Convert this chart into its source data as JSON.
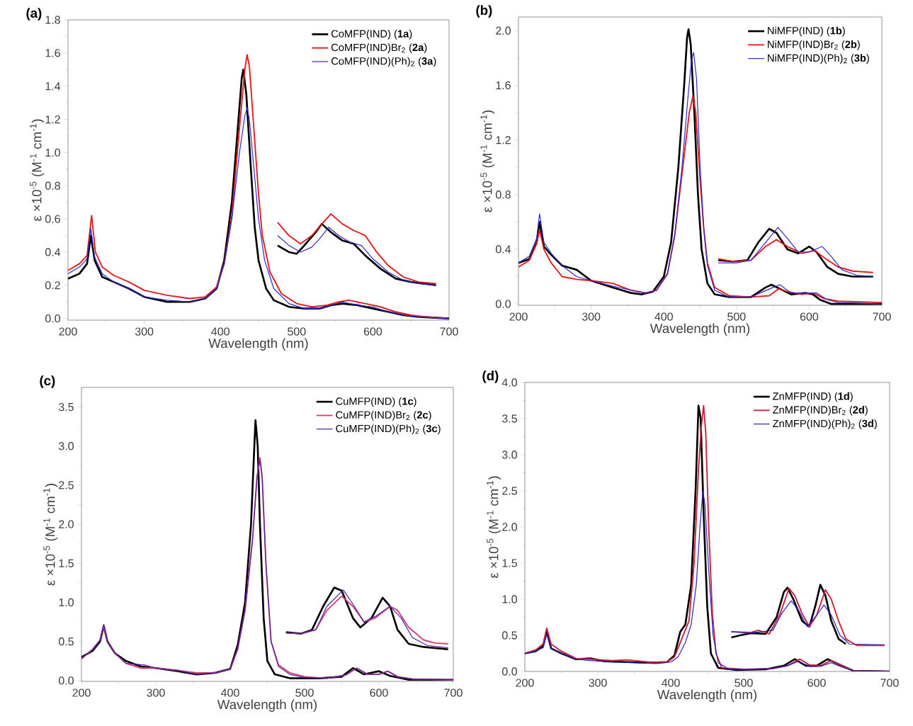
{
  "chart_data": [
    {
      "type": "line",
      "title": "(a)",
      "xlabel": "Wavelength (nm)",
      "ylabel": "ε ×10$^{-5}$ (M$^{-1}$ cm$^{-1}$)",
      "xlim": [
        200,
        700
      ],
      "ylim": [
        -0.01,
        1.8
      ],
      "xticks": [
        200,
        300,
        400,
        500,
        600,
        700
      ],
      "yticks": [
        {
          "value": 0,
          "label": "0.0"
        },
        0.2,
        0.4,
        0.6,
        0.8,
        {
          "value": 1,
          "label": "1.0"
        },
        1.2,
        1.4,
        1.6,
        1.8
      ],
      "legend": "top right",
      "grid": false,
      "marker": "none",
      "series": [
        {
          "name": "CoMFP(IND) (**1a**)",
          "color": "#000000",
          "x": [
            200,
            215,
            225,
            230,
            235,
            245,
            260,
            280,
            300,
            330,
            360,
            380,
            395,
            405,
            415,
            422,
            428,
            430,
            434,
            440,
            445,
            450,
            460,
            470,
            490,
            510,
            530,
            545,
            560,
            580,
            600,
            620,
            640,
            660,
            700
          ],
          "values": [
            0.24,
            0.27,
            0.33,
            0.5,
            0.35,
            0.25,
            0.22,
            0.18,
            0.13,
            0.1,
            0.1,
            0.12,
            0.18,
            0.35,
            0.7,
            1.1,
            1.45,
            1.5,
            1.35,
            0.9,
            0.55,
            0.35,
            0.18,
            0.11,
            0.07,
            0.06,
            0.06,
            0.08,
            0.09,
            0.08,
            0.06,
            0.04,
            0.02,
            0.01,
            0.0
          ]
        },
        {
          "name": "CoMFP(IND)Br$_{2}$ (**2a**)",
          "color": "#e31a1c",
          "x": [
            200,
            215,
            225,
            231,
            236,
            245,
            260,
            280,
            300,
            330,
            360,
            380,
            395,
            405,
            415,
            425,
            432,
            435,
            438,
            443,
            450,
            455,
            465,
            480,
            500,
            520,
            540,
            555,
            568,
            590,
            610,
            630,
            650,
            670,
            700
          ],
          "values": [
            0.29,
            0.33,
            0.38,
            0.62,
            0.4,
            0.31,
            0.26,
            0.22,
            0.17,
            0.14,
            0.12,
            0.13,
            0.19,
            0.33,
            0.62,
            1.15,
            1.5,
            1.59,
            1.52,
            1.2,
            0.75,
            0.5,
            0.28,
            0.15,
            0.09,
            0.07,
            0.08,
            0.1,
            0.11,
            0.09,
            0.07,
            0.04,
            0.02,
            0.01,
            0.0
          ]
        },
        {
          "name": "CoMFP(IND)(Ph)$_{2}$ (**3a**)",
          "color": "#2a2ad6",
          "x": [
            200,
            215,
            225,
            230,
            235,
            245,
            260,
            280,
            300,
            330,
            360,
            380,
            395,
            405,
            415,
            425,
            432,
            435,
            438,
            443,
            450,
            458,
            470,
            490,
            510,
            530,
            545,
            560,
            580,
            600,
            620,
            640,
            660,
            700
          ],
          "values": [
            0.27,
            0.31,
            0.36,
            0.54,
            0.37,
            0.27,
            0.22,
            0.18,
            0.13,
            0.11,
            0.1,
            0.12,
            0.18,
            0.33,
            0.6,
            1.0,
            1.22,
            1.27,
            1.2,
            0.95,
            0.6,
            0.35,
            0.18,
            0.09,
            0.06,
            0.06,
            0.08,
            0.1,
            0.08,
            0.07,
            0.04,
            0.02,
            0.01,
            0.0
          ]
        },
        {
          "color": "#000000",
          "x": [
            475,
            490,
            500,
            510,
            525,
            533,
            545,
            560,
            575,
            590,
            610,
            630,
            650,
            683
          ],
          "values": [
            0.44,
            0.4,
            0.39,
            0.44,
            0.52,
            0.57,
            0.52,
            0.47,
            0.45,
            0.38,
            0.3,
            0.24,
            0.22,
            0.2
          ]
        },
        {
          "color": "#e31a1c",
          "x": [
            475,
            490,
            505,
            520,
            535,
            545,
            560,
            575,
            590,
            605,
            620,
            640,
            660,
            683
          ],
          "values": [
            0.58,
            0.5,
            0.45,
            0.5,
            0.58,
            0.63,
            0.57,
            0.53,
            0.5,
            0.4,
            0.32,
            0.25,
            0.22,
            0.21
          ]
        },
        {
          "color": "#2a2ad6",
          "x": [
            475,
            490,
            505,
            520,
            530,
            542,
            555,
            570,
            585,
            600,
            620,
            640,
            660,
            683
          ],
          "values": [
            0.5,
            0.44,
            0.4,
            0.43,
            0.48,
            0.55,
            0.5,
            0.46,
            0.44,
            0.36,
            0.28,
            0.23,
            0.21,
            0.2
          ]
        }
      ]
    },
    {
      "type": "line",
      "title": "(b)",
      "xlabel": "Wavelength (nm)",
      "ylabel": "ε ×10$^{-5}$ (M$^{-1}$ cm$^{-1}$)",
      "xlim": [
        200,
        700
      ],
      "ylim": [
        -0.01,
        2.1
      ],
      "xticks": [
        200,
        300,
        400,
        500,
        600,
        700
      ],
      "yticks": [
        {
          "value": 0,
          "label": "0.0"
        },
        0.4,
        0.8,
        1.2,
        1.6,
        {
          "value": 2,
          "label": "2.0"
        }
      ],
      "legend": "top right",
      "grid": false,
      "marker": "none",
      "series": [
        {
          "name": "NiMFP(IND) (**1b**)",
          "color": "#000000",
          "x": [
            200,
            215,
            225,
            229,
            235,
            245,
            260,
            280,
            300,
            330,
            355,
            370,
            385,
            400,
            410,
            420,
            428,
            432,
            434,
            437,
            442,
            447,
            452,
            460,
            470,
            490,
            520,
            540,
            548,
            560,
            575,
            595,
            605,
            615,
            630,
            700
          ],
          "values": [
            0.3,
            0.33,
            0.45,
            0.6,
            0.42,
            0.36,
            0.28,
            0.25,
            0.17,
            0.12,
            0.08,
            0.07,
            0.09,
            0.2,
            0.45,
            1.0,
            1.6,
            1.95,
            2.01,
            1.9,
            1.4,
            0.8,
            0.4,
            0.15,
            0.07,
            0.05,
            0.05,
            0.12,
            0.14,
            0.11,
            0.07,
            0.08,
            0.07,
            0.03,
            0.0,
            0.0
          ]
        },
        {
          "name": "NiMFP(IND)Br$_{2}$ (**2b**)",
          "color": "#e31a1c",
          "x": [
            200,
            215,
            225,
            229,
            235,
            245,
            260,
            280,
            300,
            330,
            355,
            375,
            390,
            405,
            415,
            425,
            435,
            440,
            444,
            450,
            455,
            460,
            470,
            490,
            520,
            545,
            558,
            570,
            590,
            605,
            620,
            640,
            700
          ],
          "values": [
            0.27,
            0.32,
            0.44,
            0.54,
            0.4,
            0.3,
            0.2,
            0.18,
            0.17,
            0.15,
            0.1,
            0.08,
            0.1,
            0.22,
            0.5,
            0.95,
            1.4,
            1.52,
            1.4,
            0.9,
            0.55,
            0.3,
            0.12,
            0.06,
            0.05,
            0.06,
            0.11,
            0.09,
            0.07,
            0.08,
            0.04,
            0.02,
            0.01
          ]
        },
        {
          "name": "NiMFP(IND)(Ph)$_{2}$ (**3b**)",
          "color": "#2a2ad6",
          "x": [
            200,
            215,
            225,
            229,
            235,
            245,
            260,
            280,
            300,
            330,
            355,
            375,
            390,
            405,
            415,
            425,
            433,
            438,
            441,
            445,
            450,
            455,
            460,
            470,
            490,
            520,
            550,
            560,
            575,
            595,
            610,
            625,
            640,
            700
          ],
          "values": [
            0.3,
            0.35,
            0.48,
            0.66,
            0.45,
            0.37,
            0.28,
            0.2,
            0.17,
            0.13,
            0.1,
            0.08,
            0.1,
            0.22,
            0.5,
            1.0,
            1.5,
            1.78,
            1.84,
            1.65,
            1.0,
            0.55,
            0.28,
            0.1,
            0.05,
            0.05,
            0.12,
            0.14,
            0.08,
            0.08,
            0.08,
            0.03,
            0.01,
            0.0
          ]
        },
        {
          "color": "#000000",
          "x": [
            475,
            495,
            515,
            530,
            545,
            555,
            570,
            585,
            600,
            610,
            625,
            640,
            660,
            688
          ],
          "values": [
            0.32,
            0.31,
            0.32,
            0.45,
            0.55,
            0.52,
            0.4,
            0.37,
            0.42,
            0.38,
            0.27,
            0.22,
            0.2,
            0.2
          ]
        },
        {
          "color": "#e31a1c",
          "x": [
            475,
            495,
            520,
            540,
            555,
            570,
            590,
            608,
            620,
            640,
            660,
            688
          ],
          "values": [
            0.33,
            0.31,
            0.32,
            0.42,
            0.47,
            0.42,
            0.37,
            0.39,
            0.34,
            0.27,
            0.24,
            0.23
          ]
        },
        {
          "color": "#2a2ad6",
          "x": [
            475,
            500,
            520,
            540,
            557,
            570,
            585,
            600,
            618,
            630,
            645,
            665,
            688
          ],
          "values": [
            0.3,
            0.3,
            0.32,
            0.45,
            0.56,
            0.48,
            0.38,
            0.38,
            0.42,
            0.35,
            0.25,
            0.21,
            0.2
          ]
        }
      ]
    },
    {
      "type": "line",
      "title": "(c)",
      "xlabel": "Wavelength (nm)",
      "ylabel": "ε ×10$^{-5}$ (M$^{-1}$ cm$^{-1}$)",
      "xlim": [
        200,
        700
      ],
      "ylim": [
        -0.01,
        3.75
      ],
      "xticks": [
        200,
        300,
        400,
        500,
        600,
        700
      ],
      "yticks": [
        {
          "value": 0,
          "label": "0.0"
        },
        0.5,
        {
          "value": 1,
          "label": "1.0"
        },
        1.5,
        {
          "value": 2,
          "label": "2.0"
        },
        2.5,
        {
          "value": 3,
          "label": "3.0"
        },
        3.5
      ],
      "legend": "top right",
      "grid": false,
      "marker": "none",
      "series": [
        {
          "name": "CuMFP(IND) (**1c**)",
          "color": "#000000",
          "x": [
            200,
            215,
            225,
            230,
            235,
            245,
            260,
            280,
            300,
            330,
            355,
            380,
            400,
            410,
            420,
            428,
            432,
            434,
            437,
            440,
            445,
            450,
            460,
            480,
            520,
            550,
            565,
            580,
            600,
            615,
            640,
            700
          ],
          "values": [
            0.3,
            0.38,
            0.5,
            0.7,
            0.5,
            0.35,
            0.25,
            0.18,
            0.16,
            0.12,
            0.08,
            0.1,
            0.15,
            0.45,
            1.0,
            2.0,
            2.9,
            3.33,
            3.0,
            2.0,
            0.8,
            0.25,
            0.08,
            0.03,
            0.03,
            0.05,
            0.16,
            0.08,
            0.12,
            0.06,
            0.01,
            0.01
          ]
        },
        {
          "name": "CuMFP(IND)Br$_{2}$ (**2c**)",
          "color": "#d04070",
          "x": [
            200,
            215,
            225,
            230,
            235,
            245,
            260,
            280,
            300,
            330,
            355,
            380,
            400,
            410,
            420,
            430,
            436,
            440,
            443,
            448,
            455,
            465,
            480,
            500,
            530,
            555,
            570,
            585,
            600,
            612,
            625,
            645,
            700
          ],
          "values": [
            0.28,
            0.4,
            0.52,
            0.7,
            0.5,
            0.35,
            0.22,
            0.16,
            0.16,
            0.13,
            0.1,
            0.1,
            0.15,
            0.4,
            0.9,
            1.8,
            2.6,
            2.85,
            2.6,
            1.5,
            0.5,
            0.2,
            0.1,
            0.05,
            0.03,
            0.07,
            0.16,
            0.08,
            0.08,
            0.12,
            0.05,
            0.02,
            0.01
          ]
        },
        {
          "name": "CuMFP(IND)(Ph)$_{2}$ (**3c**)",
          "color": "#5020a8",
          "x": [
            200,
            215,
            225,
            230,
            235,
            245,
            260,
            285,
            300,
            330,
            355,
            380,
            400,
            410,
            420,
            430,
            436,
            440,
            443,
            448,
            455,
            465,
            480,
            500,
            530,
            555,
            570,
            585,
            600,
            612,
            625,
            645,
            700
          ],
          "values": [
            0.28,
            0.4,
            0.52,
            0.72,
            0.5,
            0.35,
            0.22,
            0.2,
            0.16,
            0.13,
            0.08,
            0.1,
            0.15,
            0.4,
            0.9,
            1.8,
            2.6,
            2.82,
            2.6,
            1.5,
            0.5,
            0.18,
            0.08,
            0.04,
            0.03,
            0.07,
            0.16,
            0.08,
            0.08,
            0.12,
            0.05,
            0.02,
            0.01
          ]
        },
        {
          "color": "#000000",
          "x": [
            475,
            495,
            510,
            525,
            540,
            550,
            565,
            575,
            590,
            605,
            615,
            625,
            640,
            660,
            693
          ],
          "values": [
            0.62,
            0.6,
            0.65,
            0.95,
            1.19,
            1.15,
            0.8,
            0.68,
            0.8,
            1.06,
            0.95,
            0.65,
            0.47,
            0.43,
            0.4
          ]
        },
        {
          "color": "#d04070",
          "x": [
            475,
            495,
            515,
            530,
            550,
            565,
            580,
            595,
            615,
            625,
            640,
            660,
            675,
            693
          ],
          "values": [
            0.61,
            0.6,
            0.65,
            0.9,
            1.08,
            0.95,
            0.75,
            0.8,
            0.95,
            0.9,
            0.68,
            0.52,
            0.48,
            0.47
          ]
        },
        {
          "color": "#5020a8",
          "x": [
            475,
            495,
            515,
            530,
            552,
            565,
            580,
            595,
            615,
            630,
            645,
            665,
            693
          ],
          "values": [
            0.61,
            0.6,
            0.65,
            0.95,
            1.16,
            0.98,
            0.75,
            0.82,
            0.95,
            0.8,
            0.55,
            0.45,
            0.42
          ]
        }
      ]
    },
    {
      "type": "line",
      "title": "(d)",
      "xlabel": "Wavelength (nm)",
      "ylabel": "ε ×10$^{-5}$ (M$^{-1}$ cm$^{-1}$)",
      "xlim": [
        200,
        700
      ],
      "ylim": [
        0,
        4
      ],
      "xticks": [
        200,
        300,
        400,
        500,
        600,
        700
      ],
      "yticks": [
        {
          "value": 0,
          "label": "0.0"
        },
        0.5,
        {
          "value": 1,
          "label": "1.0"
        },
        1.5,
        {
          "value": 2,
          "label": "2.0"
        },
        2.5,
        {
          "value": 3,
          "label": "3.0"
        },
        3.5,
        {
          "value": 4,
          "label": "4.0"
        }
      ],
      "legend": "top right",
      "grid": false,
      "marker": "none",
      "series": [
        {
          "name": "ZnMFP(IND) (**1d**)",
          "color": "#000000",
          "x": [
            200,
            215,
            225,
            230,
            236,
            250,
            270,
            290,
            310,
            340,
            370,
            395,
            405,
            413,
            420,
            428,
            434,
            438,
            441,
            445,
            450,
            455,
            465,
            490,
            530,
            555,
            570,
            585,
            600,
            615,
            630,
            650,
            700
          ],
          "values": [
            0.25,
            0.28,
            0.35,
            0.55,
            0.32,
            0.25,
            0.17,
            0.18,
            0.14,
            0.13,
            0.12,
            0.13,
            0.22,
            0.55,
            0.65,
            1.2,
            2.5,
            3.68,
            3.5,
            2.2,
            0.9,
            0.25,
            0.05,
            0.02,
            0.03,
            0.08,
            0.17,
            0.08,
            0.08,
            0.17,
            0.1,
            0.01,
            0.0
          ]
        },
        {
          "name": "ZnMFP(IND)Br$_{2}$ (**2d**)",
          "color": "#c8203a",
          "x": [
            200,
            215,
            225,
            230,
            236,
            250,
            270,
            290,
            320,
            340,
            370,
            395,
            405,
            415,
            425,
            432,
            438,
            442,
            445,
            448,
            452,
            457,
            462,
            470,
            500,
            540,
            560,
            577,
            590,
            605,
            620,
            635,
            650,
            700
          ],
          "values": [
            0.25,
            0.3,
            0.38,
            0.6,
            0.38,
            0.28,
            0.18,
            0.17,
            0.15,
            0.16,
            0.13,
            0.13,
            0.2,
            0.45,
            0.7,
            1.5,
            2.8,
            3.4,
            3.68,
            3.3,
            2.0,
            0.8,
            0.25,
            0.05,
            0.03,
            0.04,
            0.08,
            0.17,
            0.09,
            0.08,
            0.15,
            0.08,
            0.01,
            0.0
          ]
        },
        {
          "name": "ZnMFP(IND)(Ph)$_{2}$ (**3d**)",
          "color": "#3020c0",
          "x": [
            200,
            215,
            225,
            230,
            236,
            250,
            270,
            290,
            320,
            350,
            380,
            400,
            410,
            420,
            428,
            435,
            440,
            444,
            447,
            452,
            458,
            465,
            480,
            510,
            540,
            560,
            575,
            590,
            605,
            620,
            635,
            650,
            700
          ],
          "values": [
            0.25,
            0.28,
            0.33,
            0.52,
            0.32,
            0.25,
            0.17,
            0.15,
            0.13,
            0.12,
            0.11,
            0.13,
            0.2,
            0.4,
            0.65,
            1.2,
            2.0,
            2.5,
            2.3,
            1.4,
            0.5,
            0.12,
            0.03,
            0.03,
            0.04,
            0.08,
            0.14,
            0.07,
            0.07,
            0.12,
            0.06,
            0.01,
            0.0
          ]
        },
        {
          "color": "#000000",
          "x": [
            483,
            495,
            510,
            530,
            545,
            555,
            560,
            568,
            580,
            590,
            598,
            605,
            612,
            620,
            630,
            640
          ],
          "values": [
            0.47,
            0.5,
            0.53,
            0.52,
            0.75,
            1.1,
            1.16,
            1.0,
            0.7,
            0.62,
            0.9,
            1.2,
            1.05,
            0.7,
            0.45,
            0.38
          ]
        },
        {
          "color": "#c8203a",
          "x": [
            483,
            510,
            520,
            535,
            550,
            562,
            570,
            580,
            590,
            600,
            612,
            620,
            630,
            640,
            655,
            693
          ],
          "values": [
            0.55,
            0.54,
            0.57,
            0.52,
            0.8,
            1.15,
            1.05,
            0.8,
            0.62,
            0.78,
            1.13,
            1.0,
            0.7,
            0.45,
            0.36,
            0.36
          ]
        },
        {
          "color": "#3020c0",
          "x": [
            483,
            505,
            525,
            540,
            552,
            565,
            575,
            587,
            598,
            610,
            620,
            632,
            645,
            693
          ],
          "values": [
            0.55,
            0.53,
            0.55,
            0.57,
            0.8,
            0.98,
            0.85,
            0.62,
            0.75,
            0.92,
            0.78,
            0.5,
            0.38,
            0.37
          ]
        }
      ]
    }
  ]
}
